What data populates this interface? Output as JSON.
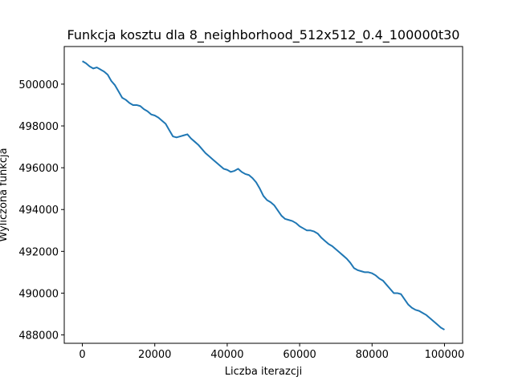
{
  "chart_data": {
    "type": "line",
    "title": "Funkcja kosztu dla 8_neighborhood_512x512_0.4_100000t30",
    "xlabel": "Liczba iterazcji",
    "ylabel": "Wyliczona funkcja",
    "xlim": [
      -5000,
      105000
    ],
    "ylim": [
      487600,
      501800
    ],
    "xticks": [
      0,
      20000,
      40000,
      60000,
      80000,
      100000
    ],
    "yticks": [
      488000,
      490000,
      492000,
      494000,
      496000,
      498000,
      500000
    ],
    "grid": false,
    "color": "#1f77b4",
    "series": [
      {
        "x": [
          0,
          1000,
          2000,
          3000,
          4000,
          5000,
          6000,
          7000,
          8000,
          9000,
          10000,
          11000,
          12000,
          13000,
          14000,
          15000,
          16000,
          17000,
          18000,
          19000,
          20000,
          21000,
          22000,
          23000,
          24000,
          25000,
          26000,
          27000,
          28000,
          29000,
          30000,
          31000,
          32000,
          33000,
          34000,
          35000,
          36000,
          37000,
          38000,
          39000,
          40000,
          41000,
          42000,
          43000,
          44000,
          45000,
          46000,
          47000,
          48000,
          49000,
          50000,
          51000,
          52000,
          53000,
          54000,
          55000,
          56000,
          57000,
          58000,
          59000,
          60000,
          61000,
          62000,
          63000,
          64000,
          65000,
          66000,
          67000,
          68000,
          69000,
          70000,
          71000,
          72000,
          73000,
          74000,
          75000,
          76000,
          77000,
          78000,
          79000,
          80000,
          81000,
          82000,
          83000,
          84000,
          85000,
          86000,
          87000,
          88000,
          89000,
          90000,
          91000,
          92000,
          93000,
          94000,
          95000,
          96000,
          97000,
          98000,
          99000,
          100000
        ],
        "y": [
          501100,
          501000,
          500850,
          500750,
          500800,
          500700,
          500600,
          500450,
          500150,
          499950,
          499650,
          499350,
          499250,
          499100,
          499000,
          499000,
          498950,
          498800,
          498700,
          498550,
          498500,
          498400,
          498250,
          498100,
          497800,
          497500,
          497450,
          497500,
          497550,
          497600,
          497400,
          497250,
          497100,
          496900,
          496700,
          496550,
          496400,
          496250,
          496100,
          495950,
          495900,
          495800,
          495850,
          495950,
          495800,
          495700,
          495650,
          495500,
          495300,
          495000,
          494650,
          494450,
          494350,
          494200,
          493950,
          493700,
          493550,
          493500,
          493450,
          493350,
          493200,
          493100,
          493000,
          493000,
          492950,
          492850,
          492650,
          492500,
          492350,
          492250,
          492100,
          491950,
          491800,
          491650,
          491450,
          491200,
          491100,
          491050,
          491000,
          491000,
          490950,
          490850,
          490700,
          490600,
          490400,
          490200,
          490000,
          490000,
          489950,
          489700,
          489450,
          489300,
          489200,
          489150,
          489050,
          488950,
          488800,
          488650,
          488500,
          488350,
          488250
        ]
      }
    ]
  }
}
